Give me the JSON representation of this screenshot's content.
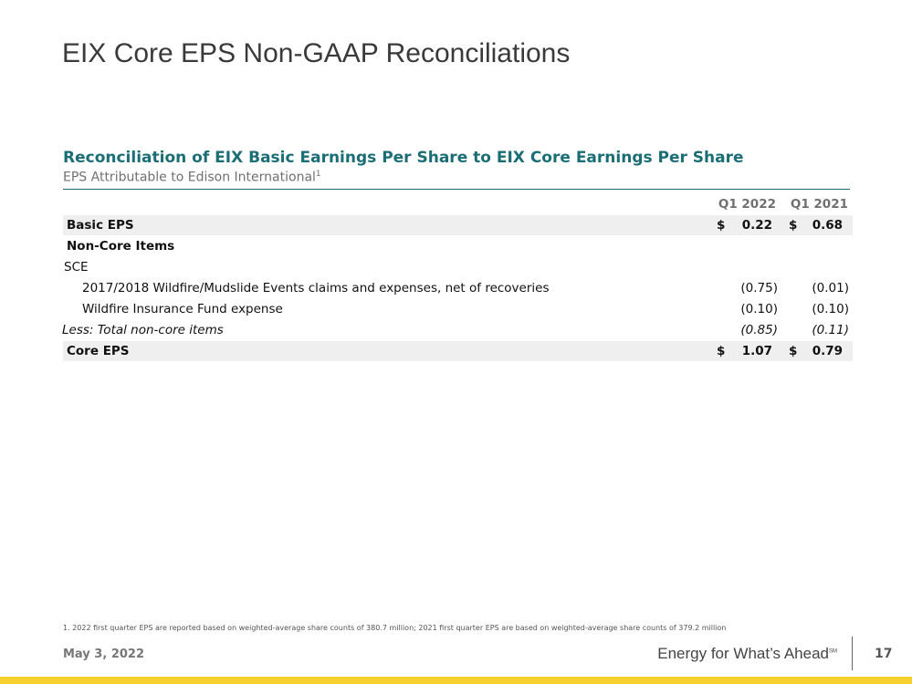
{
  "header": {
    "title": "EIX Core EPS Non-GAAP Reconciliations"
  },
  "table": {
    "title": "Reconciliation of EIX Basic Earnings Per Share to EIX Core Earnings Per Share",
    "subtitle": "EPS Attributable to Edison International",
    "subtitle_note": "1",
    "columns": [
      "Q1 2022",
      "Q1 2021"
    ],
    "rows": [
      [
        "Basic EPS",
        "$",
        "0.22",
        "$",
        "0.68"
      ],
      [
        "Non-Core Items"
      ],
      [
        "SCE"
      ],
      [
        "2017/2018 Wildfire/Mudslide Events claims and expenses, net of recoveries",
        "(0.75)",
        "(0.01)"
      ],
      [
        "Wildfire Insurance Fund expense",
        "(0.10)",
        "(0.10)"
      ],
      [
        "Less: Total non-core items",
        "(0.85)",
        "(0.11)"
      ],
      [
        "Core EPS",
        "$",
        "1.07",
        "$",
        "0.79"
      ]
    ]
  },
  "footnote": "1.  2022 first quarter EPS are reported based on weighted-average share counts of 380.7 million; 2021 first quarter EPS are based on weighted-average share counts of 379.2 million",
  "footer": {
    "date": "May 3, 2022",
    "tagline": "Energy for What’s Ahead",
    "tagline_mark": "SM",
    "page": "17"
  }
}
